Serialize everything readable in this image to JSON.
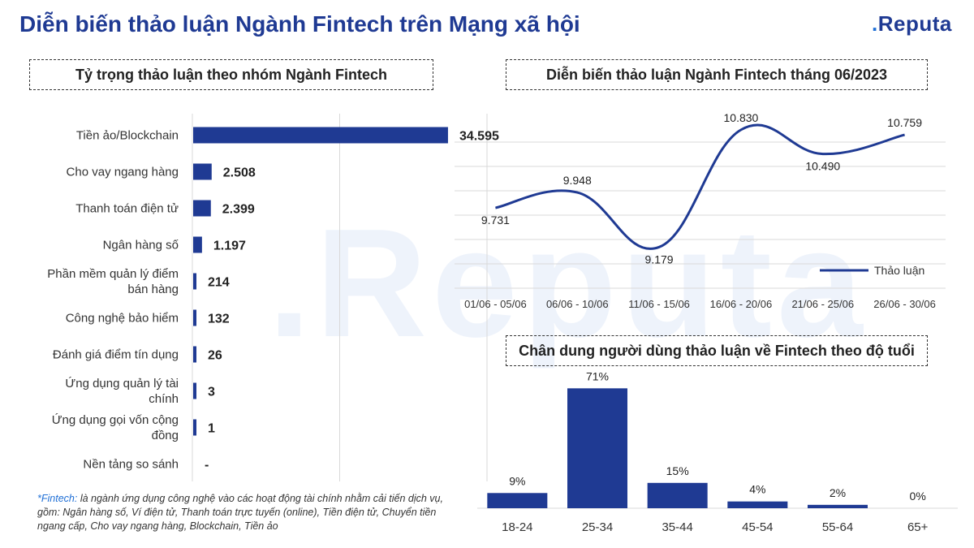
{
  "header": {
    "title": "Diễn biến thảo luận Ngành Fintech trên Mạng xã hội",
    "logo_text": "Reputa",
    "brand_color": "#1f3a93"
  },
  "watermark_text": ".Reputa",
  "sections": {
    "left_title": "Tỷ trọng thảo luận theo nhóm Ngành Fintech",
    "line_title": "Diễn biến thảo luận Ngành Fintech tháng 06/2023",
    "age_title": "Chân dung người dùng thảo luận về Fintech theo độ tuổi"
  },
  "footnote": {
    "label": "*Fintech:",
    "text": " là ngành ứng dụng công nghệ vào các hoạt động tài chính nhằm cải tiến dịch vụ, gồm: Ngân hàng số, Ví điện tử, Thanh toán trực tuyến (online), Tiền điện tử, Chuyển tiền ngang cấp, Cho vay ngang hàng, Blockchain, Tiền ảo"
  },
  "chart_data": [
    {
      "type": "bar",
      "orientation": "horizontal",
      "title": "Tỷ trọng thảo luận theo nhóm Ngành Fintech",
      "categories": [
        "Tiền ảo/Blockchain",
        "Cho vay ngang hàng",
        "Thanh toán điện tử",
        "Ngân hàng số",
        "Phần mềm quản lý điểm bán hàng",
        "Công nghệ bảo hiểm",
        "Đánh giá điểm tín dụng",
        "Ứng dụng quản lý tài chính",
        "Ứng dụng gọi vốn cộng đồng",
        "Nền tảng so sánh"
      ],
      "values": [
        34595,
        2508,
        2399,
        1197,
        214,
        132,
        26,
        3,
        1,
        0
      ],
      "value_labels": [
        "34.595",
        "2.508",
        "2.399",
        "1.197",
        "214",
        "132",
        "26",
        "3",
        "1",
        "-"
      ],
      "xlim": [
        0,
        40000
      ],
      "grid": true,
      "color": "#1f3a93"
    },
    {
      "type": "line",
      "title": "Diễn biến thảo luận Ngành Fintech tháng 06/2023",
      "categories": [
        "01/06 - 05/06",
        "06/06 - 10/06",
        "11/06 - 15/06",
        "16/06 - 20/06",
        "21/06 - 25/06",
        "26/06 - 30/06"
      ],
      "series": [
        {
          "name": "Thảo luận",
          "values": [
            9731,
            9948,
            9179,
            10830,
            10490,
            10759
          ],
          "value_labels": [
            "9.731",
            "9.948",
            "9.179",
            "10.830",
            "10.490",
            "10.759"
          ]
        }
      ],
      "ylim": [
        8600,
        11000
      ],
      "grid": true,
      "legend": "bottom-right",
      "color": "#1f3a93"
    },
    {
      "type": "bar",
      "title": "Chân dung người dùng thảo luận về Fintech theo độ tuổi",
      "categories": [
        "18-24",
        "25-34",
        "35-44",
        "45-54",
        "55-64",
        "65+"
      ],
      "values": [
        9,
        71,
        15,
        4,
        2,
        0
      ],
      "value_labels": [
        "9%",
        "71%",
        "15%",
        "4%",
        "2%",
        "0%"
      ],
      "ylim": [
        0,
        75
      ],
      "color": "#1f3a93"
    }
  ]
}
